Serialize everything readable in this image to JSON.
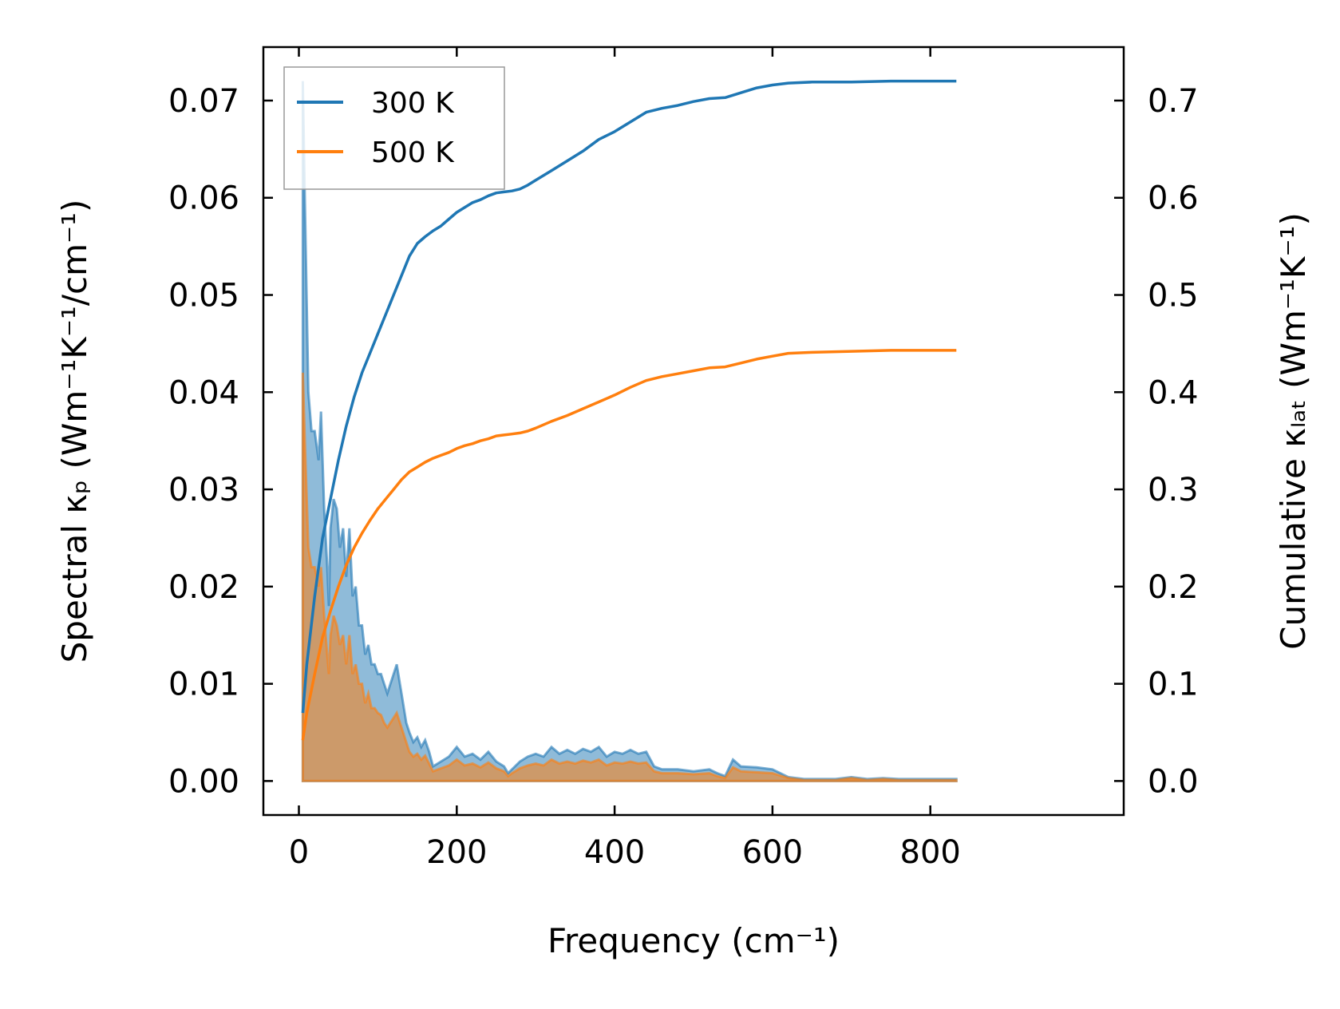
{
  "chart_data": {
    "type": "line",
    "xlabel": "Frequency (cm⁻¹)",
    "ylabel_left": "Spectral κₚ (Wm⁻¹K⁻¹/cm⁻¹)",
    "ylabel_right": "Cumulative κₗₐₜ (Wm⁻¹K⁻¹)",
    "xlim": [
      -45,
      1045
    ],
    "ylim_left": [
      -0.0035,
      0.0755
    ],
    "ylim_right": [
      -0.035,
      0.755
    ],
    "xticks": [
      "0",
      "200",
      "400",
      "600",
      "800"
    ],
    "xtick_values": [
      0,
      200,
      400,
      600,
      800
    ],
    "yticks_left": [
      "0.00",
      "0.01",
      "0.02",
      "0.03",
      "0.04",
      "0.05",
      "0.06",
      "0.07"
    ],
    "yticks_left_values": [
      0,
      0.01,
      0.02,
      0.03,
      0.04,
      0.05,
      0.06,
      0.07
    ],
    "yticks_right": [
      "0.0",
      "0.1",
      "0.2",
      "0.3",
      "0.4",
      "0.5",
      "0.6",
      "0.7"
    ],
    "yticks_right_values": [
      0,
      0.1,
      0.2,
      0.3,
      0.4,
      0.5,
      0.6,
      0.7
    ],
    "legend_position": "upper-left",
    "spectral": [
      {
        "name": "300 K",
        "color": "#1f77b4",
        "x": [
          5,
          8,
          12,
          16,
          20,
          25,
          28,
          32,
          36,
          38,
          40,
          44,
          48,
          52,
          56,
          60,
          64,
          68,
          72,
          76,
          80,
          84,
          88,
          92,
          96,
          100,
          104,
          108,
          112,
          116,
          120,
          124,
          128,
          132,
          136,
          140,
          145,
          150,
          155,
          160,
          165,
          170,
          180,
          190,
          200,
          210,
          220,
          230,
          240,
          250,
          260,
          265,
          270,
          280,
          290,
          300,
          310,
          320,
          330,
          340,
          350,
          360,
          370,
          380,
          390,
          400,
          410,
          420,
          430,
          440,
          450,
          460,
          480,
          500,
          520,
          530,
          540,
          550,
          560,
          580,
          600,
          620,
          640,
          660,
          680,
          700,
          720,
          740,
          760,
          780,
          800,
          833
        ],
        "y": [
          0.072,
          0.058,
          0.04,
          0.036,
          0.036,
          0.033,
          0.038,
          0.028,
          0.022,
          0.018,
          0.026,
          0.029,
          0.028,
          0.024,
          0.026,
          0.021,
          0.026,
          0.019,
          0.02,
          0.016,
          0.016,
          0.013,
          0.014,
          0.012,
          0.012,
          0.011,
          0.011,
          0.01,
          0.009,
          0.01,
          0.011,
          0.012,
          0.01,
          0.008,
          0.006,
          0.005,
          0.004,
          0.0045,
          0.0035,
          0.0042,
          0.003,
          0.0015,
          0.002,
          0.0025,
          0.0035,
          0.0025,
          0.0028,
          0.0022,
          0.003,
          0.002,
          0.0015,
          0.0008,
          0.0012,
          0.002,
          0.0025,
          0.0028,
          0.0025,
          0.0035,
          0.0028,
          0.0032,
          0.0028,
          0.0033,
          0.003,
          0.0035,
          0.0025,
          0.003,
          0.0028,
          0.0032,
          0.0028,
          0.003,
          0.0015,
          0.0012,
          0.0012,
          0.001,
          0.0012,
          0.0008,
          0.0005,
          0.0022,
          0.0015,
          0.0014,
          0.0012,
          0.0004,
          0.0002,
          0.0002,
          0.0002,
          0.0004,
          0.0002,
          0.0003,
          0.0002,
          0.0002,
          0.0002,
          0.0002
        ]
      },
      {
        "name": "500 K",
        "color": "#ff7f0e",
        "x": [
          5,
          8,
          12,
          16,
          20,
          25,
          28,
          32,
          36,
          38,
          40,
          44,
          48,
          52,
          56,
          60,
          64,
          68,
          72,
          76,
          80,
          84,
          88,
          92,
          96,
          100,
          104,
          108,
          112,
          116,
          120,
          124,
          128,
          132,
          136,
          140,
          145,
          150,
          155,
          160,
          165,
          170,
          180,
          190,
          200,
          210,
          220,
          230,
          240,
          250,
          260,
          265,
          270,
          280,
          290,
          300,
          310,
          320,
          330,
          340,
          350,
          360,
          370,
          380,
          390,
          400,
          410,
          420,
          430,
          440,
          450,
          460,
          480,
          500,
          520,
          530,
          540,
          550,
          560,
          580,
          600,
          620,
          640,
          660,
          680,
          700,
          720,
          740,
          760,
          780,
          800,
          833
        ],
        "y": [
          0.042,
          0.034,
          0.024,
          0.022,
          0.022,
          0.02,
          0.022,
          0.017,
          0.013,
          0.011,
          0.015,
          0.017,
          0.016,
          0.014,
          0.015,
          0.012,
          0.015,
          0.011,
          0.012,
          0.01,
          0.01,
          0.008,
          0.009,
          0.0075,
          0.0075,
          0.007,
          0.0068,
          0.006,
          0.0055,
          0.006,
          0.0065,
          0.007,
          0.006,
          0.005,
          0.004,
          0.003,
          0.0025,
          0.0028,
          0.0022,
          0.0026,
          0.0018,
          0.001,
          0.0013,
          0.0016,
          0.0022,
          0.0016,
          0.0018,
          0.0014,
          0.0019,
          0.0013,
          0.001,
          0.0005,
          0.0008,
          0.0013,
          0.0016,
          0.0018,
          0.0016,
          0.0022,
          0.0018,
          0.002,
          0.0018,
          0.0021,
          0.0019,
          0.0022,
          0.0016,
          0.0019,
          0.0018,
          0.002,
          0.0018,
          0.0019,
          0.001,
          0.0008,
          0.0008,
          0.0007,
          0.0008,
          0.0005,
          0.0003,
          0.0014,
          0.001,
          0.0009,
          0.0008,
          0.0003,
          0.0001,
          0.0001,
          0.0001,
          0.0003,
          0.0001,
          0.0002,
          0.0001,
          0.0001,
          0.0001,
          0.0001
        ]
      }
    ],
    "cumulative": [
      {
        "name": "300 K",
        "color": "#1f77b4",
        "x": [
          5,
          10,
          20,
          30,
          40,
          50,
          60,
          70,
          80,
          90,
          100,
          110,
          120,
          130,
          140,
          150,
          160,
          170,
          180,
          190,
          200,
          210,
          220,
          230,
          240,
          250,
          260,
          270,
          280,
          290,
          300,
          320,
          340,
          360,
          380,
          400,
          420,
          440,
          460,
          480,
          500,
          520,
          540,
          560,
          580,
          600,
          620,
          650,
          700,
          750,
          833
        ],
        "y": [
          0.07,
          0.12,
          0.19,
          0.25,
          0.29,
          0.33,
          0.365,
          0.395,
          0.42,
          0.44,
          0.46,
          0.48,
          0.5,
          0.52,
          0.54,
          0.553,
          0.56,
          0.566,
          0.571,
          0.578,
          0.585,
          0.59,
          0.595,
          0.598,
          0.602,
          0.605,
          0.606,
          0.607,
          0.609,
          0.613,
          0.618,
          0.628,
          0.638,
          0.648,
          0.66,
          0.668,
          0.678,
          0.688,
          0.692,
          0.695,
          0.699,
          0.702,
          0.703,
          0.708,
          0.713,
          0.716,
          0.718,
          0.719,
          0.719,
          0.72,
          0.72
        ]
      },
      {
        "name": "500 K",
        "color": "#ff7f0e",
        "x": [
          5,
          10,
          20,
          30,
          40,
          50,
          60,
          70,
          80,
          90,
          100,
          110,
          120,
          130,
          140,
          150,
          160,
          170,
          180,
          190,
          200,
          210,
          220,
          230,
          240,
          250,
          260,
          270,
          280,
          290,
          300,
          320,
          340,
          360,
          380,
          400,
          420,
          440,
          460,
          480,
          500,
          520,
          540,
          560,
          580,
          600,
          620,
          650,
          700,
          750,
          833
        ],
        "y": [
          0.042,
          0.07,
          0.11,
          0.148,
          0.175,
          0.2,
          0.222,
          0.24,
          0.255,
          0.268,
          0.28,
          0.29,
          0.3,
          0.31,
          0.318,
          0.323,
          0.328,
          0.332,
          0.335,
          0.338,
          0.342,
          0.345,
          0.347,
          0.35,
          0.352,
          0.355,
          0.356,
          0.357,
          0.358,
          0.36,
          0.363,
          0.37,
          0.376,
          0.383,
          0.39,
          0.397,
          0.405,
          0.412,
          0.416,
          0.419,
          0.422,
          0.425,
          0.426,
          0.43,
          0.434,
          0.437,
          0.44,
          0.441,
          0.442,
          0.443,
          0.443
        ]
      }
    ],
    "legend": [
      {
        "label": "300 K",
        "color": "#1f77b4"
      },
      {
        "label": "500 K",
        "color": "#ff7f0e"
      }
    ]
  }
}
